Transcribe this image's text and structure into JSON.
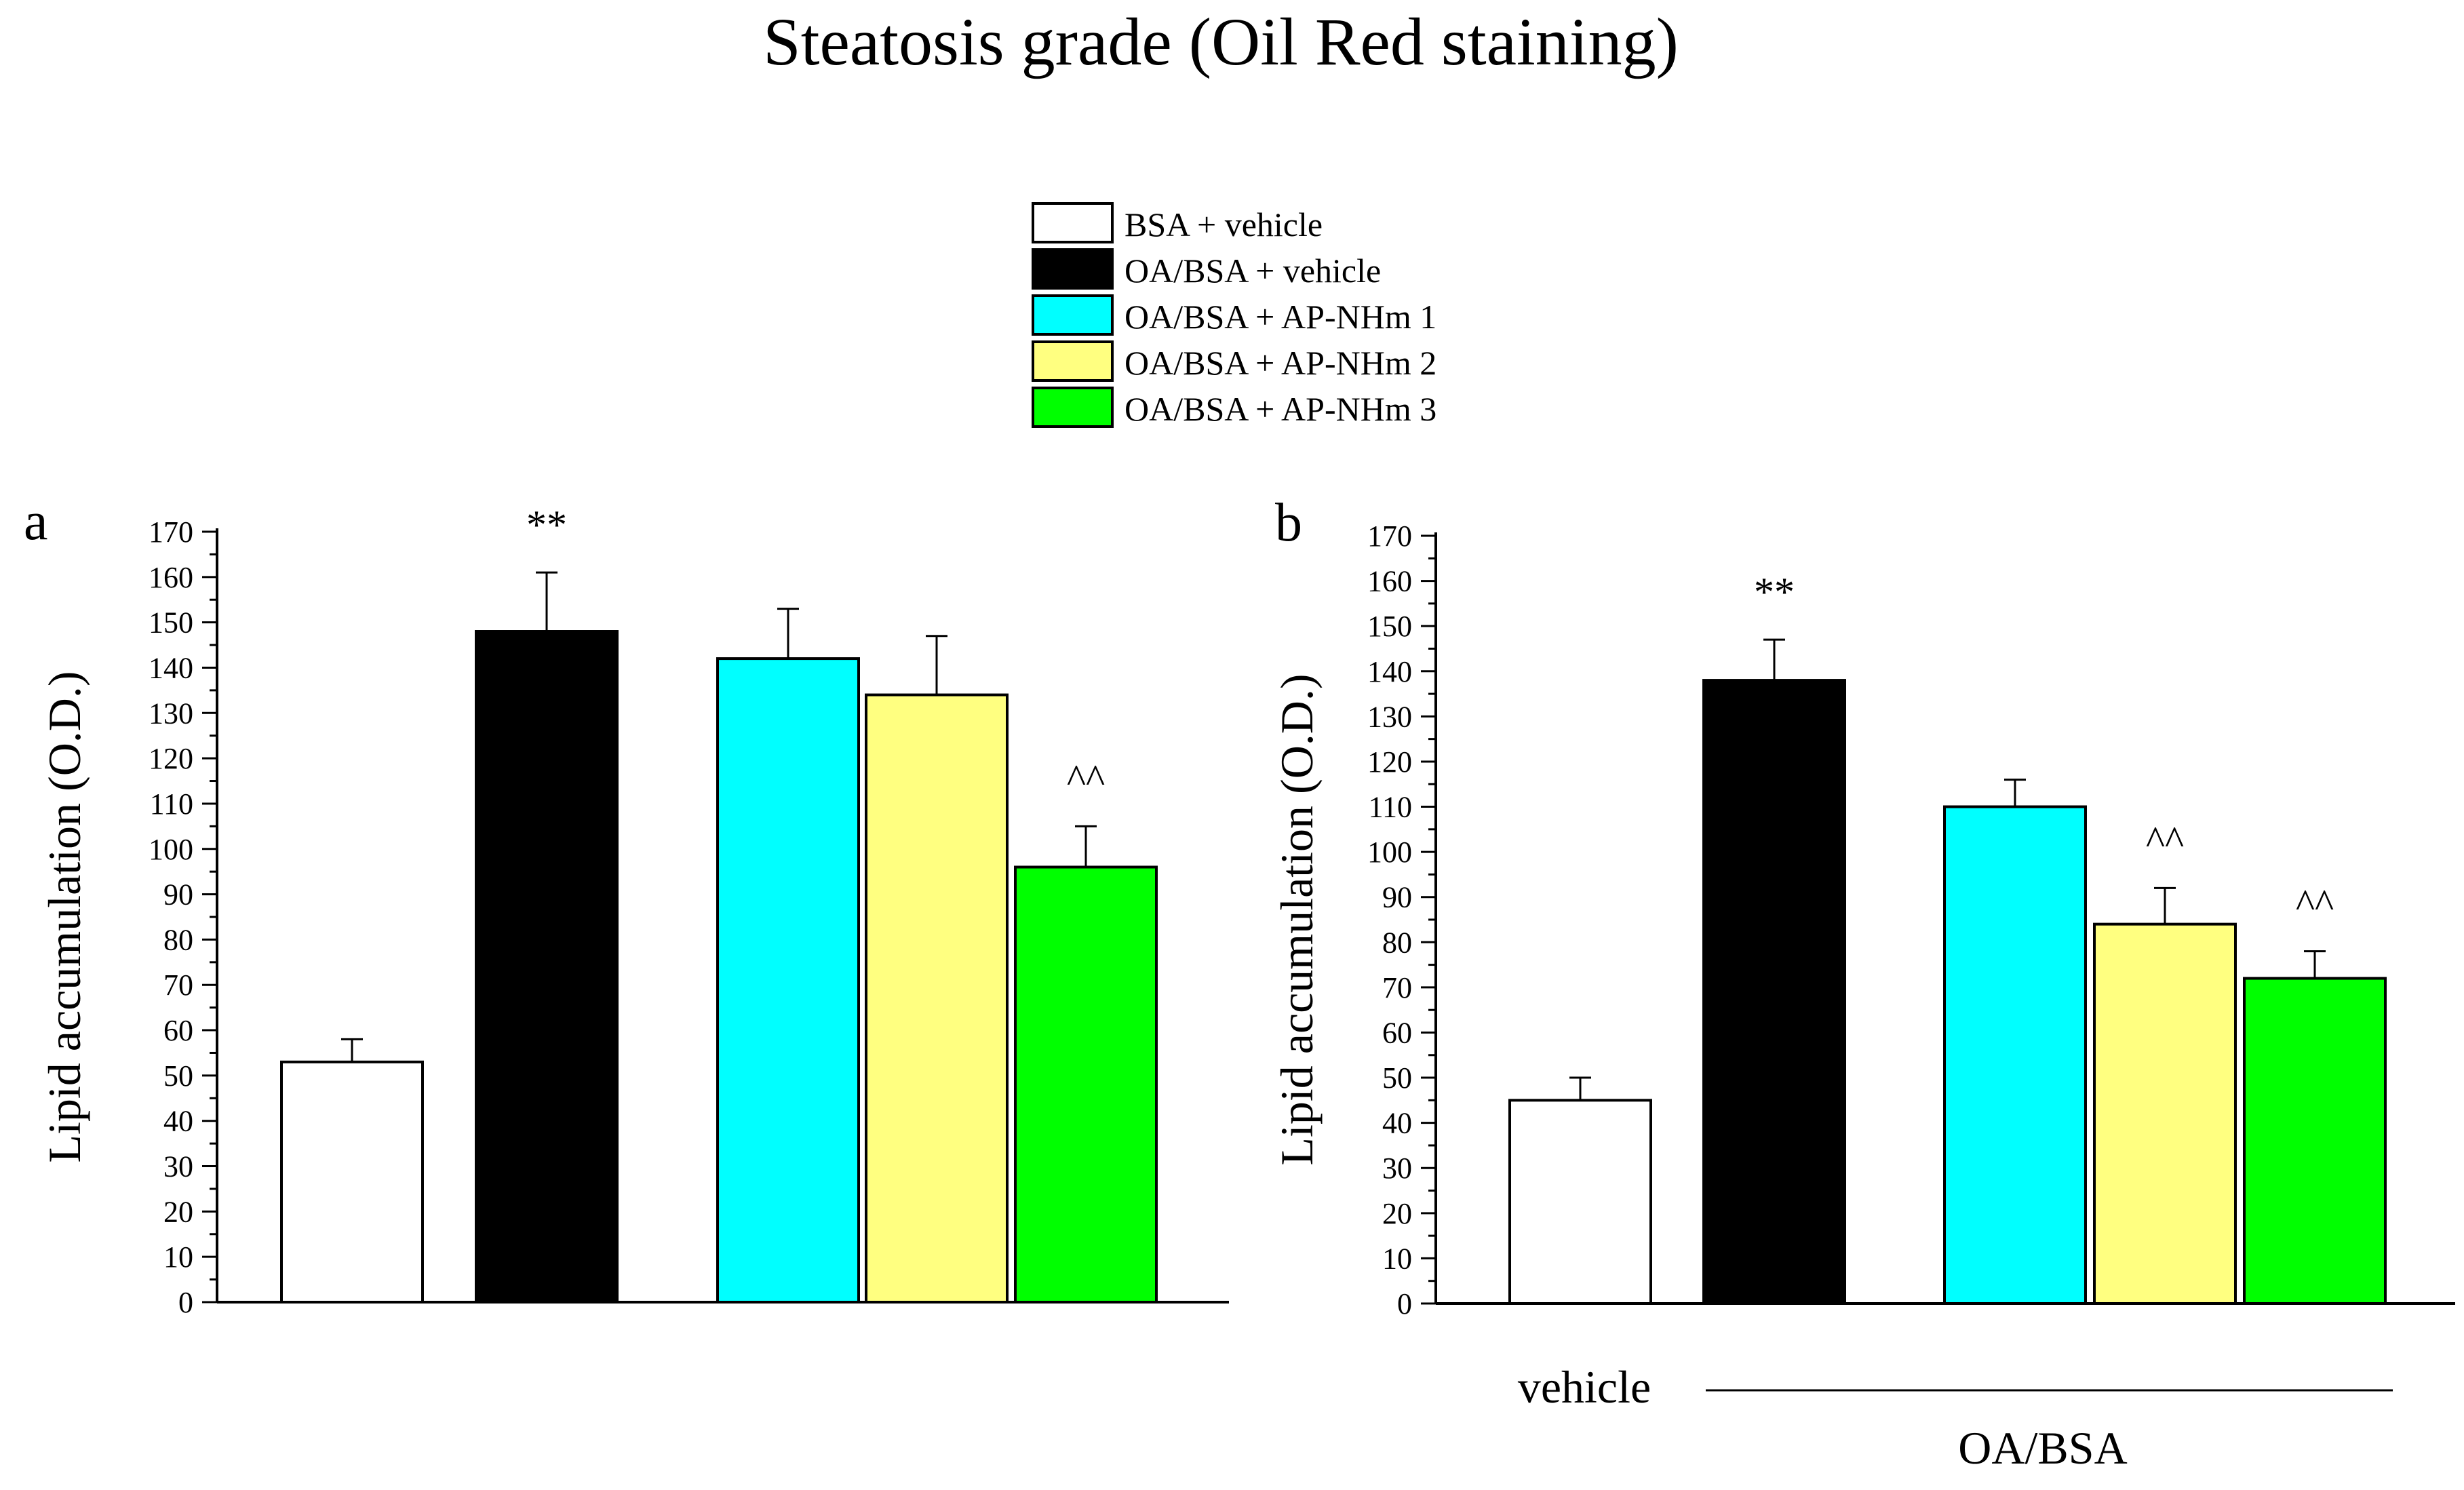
{
  "title": "Steatosis grade (Oil Red staining)",
  "legend": [
    {
      "label": "BSA + vehicle",
      "color": "#ffffff"
    },
    {
      "label": "OA/BSA + vehicle",
      "color": "#000000"
    },
    {
      "label": "OA/BSA + AP-NHm 1",
      "color": "#00ffff"
    },
    {
      "label": "OA/BSA + AP-NHm 2",
      "color": "#ffff80"
    },
    {
      "label": "OA/BSA + AP-NHm 3",
      "color": "#00ff00"
    }
  ],
  "xgroup_labels": {
    "vehicle": "vehicle",
    "treated": "OA/BSA"
  },
  "chart_data": [
    {
      "type": "bar",
      "panel": "a",
      "title": "",
      "xlabel": "",
      "ylabel": "Lipid accumulation (O.D.)",
      "ylim": [
        0,
        170
      ],
      "yticks": [
        0,
        10,
        20,
        30,
        40,
        50,
        60,
        70,
        80,
        90,
        100,
        110,
        120,
        130,
        140,
        150,
        160,
        170
      ],
      "categories": [
        "BSA + vehicle",
        "OA/BSA + vehicle",
        "OA/BSA + AP-NHm 1",
        "OA/BSA + AP-NHm 2",
        "OA/BSA + AP-NHm 3"
      ],
      "values": [
        53,
        148,
        142,
        134,
        96
      ],
      "errors": [
        5,
        13,
        11,
        13,
        9
      ],
      "colors": [
        "#ffffff",
        "#000000",
        "#00ffff",
        "#ffff80",
        "#00ff00"
      ],
      "annotations": [
        "",
        "**",
        "",
        "",
        "^^"
      ]
    },
    {
      "type": "bar",
      "panel": "b",
      "title": "",
      "xlabel": "",
      "ylabel": "Lipid accumulation (O.D.)",
      "ylim": [
        0,
        170
      ],
      "yticks": [
        0,
        10,
        20,
        30,
        40,
        50,
        60,
        70,
        80,
        90,
        100,
        110,
        120,
        130,
        140,
        150,
        160,
        170
      ],
      "categories": [
        "BSA + vehicle",
        "OA/BSA + vehicle",
        "OA/BSA + AP-NHm 1",
        "OA/BSA + AP-NHm 2",
        "OA/BSA + AP-NHm 3"
      ],
      "values": [
        45,
        138,
        110,
        84,
        72
      ],
      "errors": [
        5,
        9,
        6,
        8,
        6
      ],
      "colors": [
        "#ffffff",
        "#000000",
        "#00ffff",
        "#ffff80",
        "#00ff00"
      ],
      "annotations": [
        "",
        "**",
        "",
        "^^",
        "^^"
      ]
    }
  ]
}
